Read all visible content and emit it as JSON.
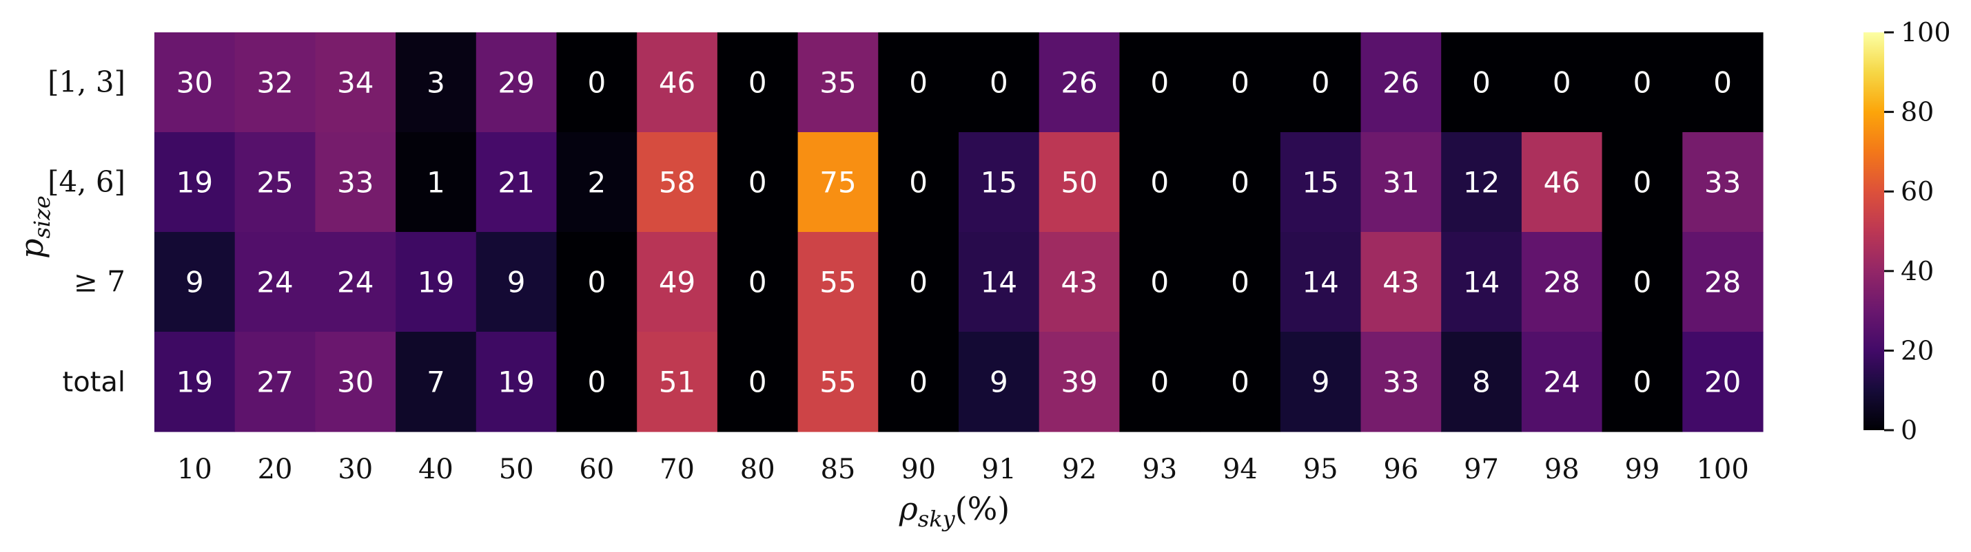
{
  "chart_data": {
    "type": "heatmap",
    "colormap": "inferno",
    "x_categories": [
      "10",
      "20",
      "30",
      "40",
      "50",
      "60",
      "70",
      "80",
      "85",
      "90",
      "91",
      "92",
      "93",
      "94",
      "95",
      "96",
      "97",
      "98",
      "99",
      "100"
    ],
    "y_categories": [
      "[1, 3]",
      "[4, 6]",
      "≥ 7",
      "total"
    ],
    "values": [
      [
        30,
        32,
        34,
        3,
        29,
        0,
        46,
        0,
        35,
        0,
        0,
        26,
        0,
        0,
        0,
        26,
        0,
        0,
        0,
        0
      ],
      [
        19,
        25,
        33,
        1,
        21,
        2,
        58,
        0,
        75,
        0,
        15,
        50,
        0,
        0,
        15,
        31,
        12,
        46,
        0,
        33
      ],
      [
        9,
        24,
        24,
        19,
        9,
        0,
        49,
        0,
        55,
        0,
        14,
        43,
        0,
        0,
        14,
        43,
        14,
        28,
        0,
        28
      ],
      [
        19,
        27,
        30,
        7,
        19,
        0,
        51,
        0,
        55,
        0,
        9,
        39,
        0,
        0,
        9,
        33,
        8,
        24,
        0,
        20
      ]
    ],
    "xlabel": "ρ_sky(%)",
    "ylabel": "p_size",
    "colorbar": {
      "range": [
        0,
        100
      ],
      "ticks": [
        0,
        20,
        40,
        60,
        80,
        100
      ]
    }
  }
}
